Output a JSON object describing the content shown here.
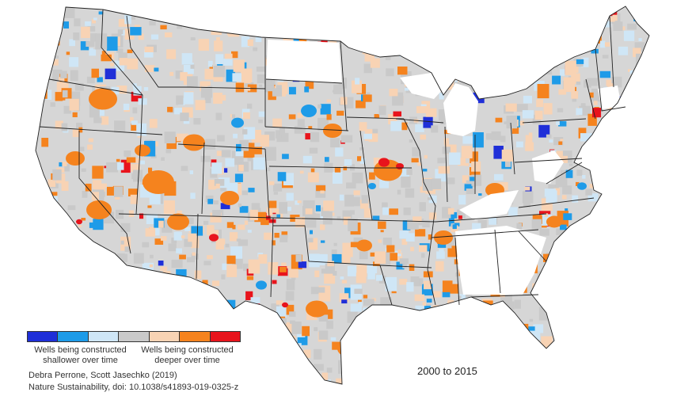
{
  "map": {
    "region": "contiguous United States",
    "category_colors": {
      "strong_shallower": "#1f2fd8",
      "shallower": "#1e9be8",
      "slight_shallower": "#cfe6f6",
      "no_trend": "#c9c9c9",
      "slight_deeper": "#f8d3b4",
      "deeper": "#f5831e",
      "strong_deeper": "#e8141c"
    }
  },
  "legend": {
    "colors": [
      "#1f2fd8",
      "#1e9be8",
      "#cfe6f6",
      "#c9c9c9",
      "#f8d3b4",
      "#f5831e",
      "#e8141c"
    ],
    "left_label_line1": "Wells being constructed",
    "left_label_line2": "shallower over time",
    "right_label_line1": "Wells being constructed",
    "right_label_line2": "deeper over time"
  },
  "credit": {
    "line1": "Debra Perrone, Scott Jasechko (2019)",
    "line2": "Nature Sustainability, doi: 10.1038/s41893-019-0325-z"
  },
  "period": "2000 to 2015"
}
